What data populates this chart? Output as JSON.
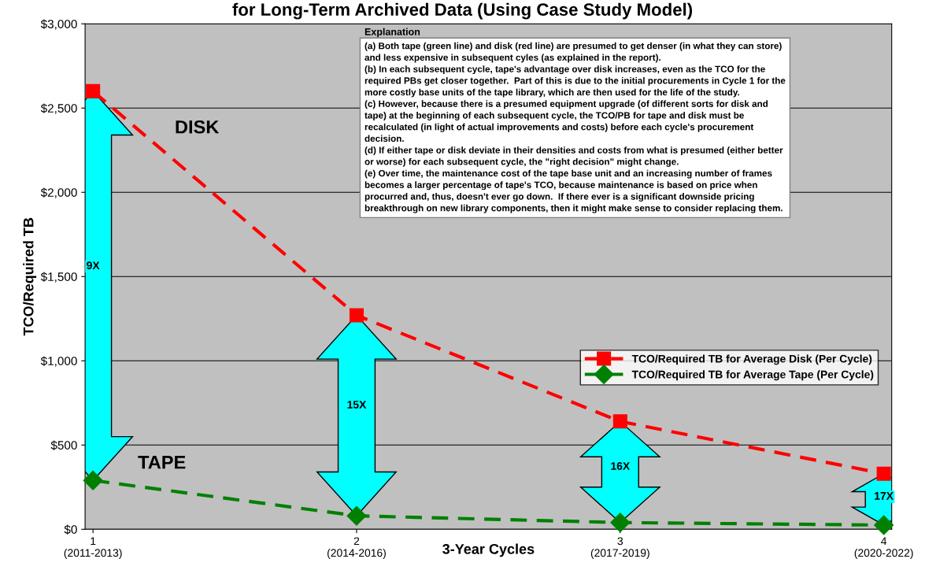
{
  "chart_data": {
    "type": "line",
    "title": "for Long-Term Archived Data (Using Case Study Model)",
    "xlabel": "3-Year Cycles",
    "ylabel": "TCO/Required TB",
    "categories": [
      "1\n(2011-2013)",
      "2\n(2014-2016)",
      "3\n(2017-2019)",
      "4\n(2020-2022)"
    ],
    "series": [
      {
        "name": "TCO/Required TB for Average Disk (Per Cycle)",
        "color": "#ff0000",
        "marker": "square",
        "values": [
          2600,
          1270,
          640,
          330
        ]
      },
      {
        "name": "TCO/Required TB for Average Tape (Per Cycle)",
        "color": "#008000",
        "marker": "diamond",
        "values": [
          290,
          80,
          40,
          25
        ]
      }
    ],
    "ylim": [
      0,
      3000
    ],
    "yticks": [
      {
        "value": 0,
        "label": "$0"
      },
      {
        "value": 500,
        "label": "$500"
      },
      {
        "value": 1000,
        "label": "$1,000"
      },
      {
        "value": 1500,
        "label": "$1,500"
      },
      {
        "value": 2000,
        "label": "$2,000"
      },
      {
        "value": 2500,
        "label": "$2,500"
      },
      {
        "value": 3000,
        "label": "$3,000"
      }
    ],
    "grid": "y",
    "legend": "right",
    "line_style": "dashed",
    "annotations": [
      "9X",
      "15X",
      "16X",
      "17X",
      "DISK",
      "TAPE",
      "Explanation",
      "(a) Both tape (green line) and disk (red line) are presumed to get denser (in what they can store)\nand less expensive in subsequent cyles (as explained in the report).\n(b) In each subsequent cycle, tape's advantage over disk increases, even as the TCO for the\nrequired PBs get closer together.  Part of this is due to the initial procurements in Cycle 1 for the\nmore costly base units of the tape library, which are then used for the life of the study.\n(c) However, because there is a presumed equipment upgrade (of different sorts for disk and\ntape) at the beginning of each subsequent cycle, the TCO/PB for tape and disk must be\nrecalculated (in light of actual improvements and costs) before each cycle's procurement\ndecision.\n(d) If either tape or disk deviate in their densities and costs from what is presumed (either better\nor worse) for each subsequent cycle, the \"right decision\" might change.\n(e) Over time, the maintenance cost of the tape base unit and an increasing number of frames\nbecomes a larger percentage of tape's TCO, because maintenance is based on price when\nprocurred and, thus, doesn't ever go down.  If there ever is a significant downside pricing\nbreakthrough on new library components, then it might make sense to consider replacing them."
    ]
  }
}
